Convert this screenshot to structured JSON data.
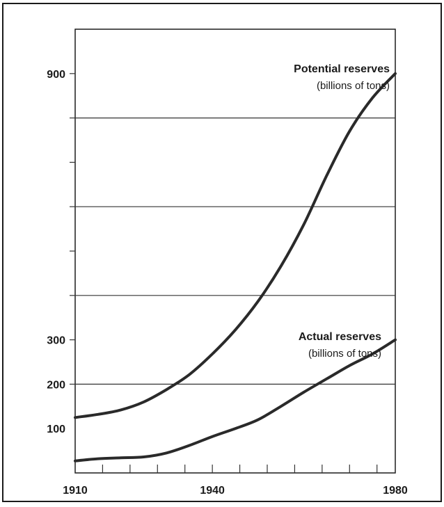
{
  "chart_data": {
    "type": "line",
    "xlim": [
      1910,
      1980
    ],
    "ylim": [
      0,
      1000
    ],
    "grid": true,
    "legend": "inline",
    "x_tick_labels": [
      {
        "value": 1910,
        "label": "1910"
      },
      {
        "value": 1940,
        "label": "1940"
      },
      {
        "value": 1980,
        "label": "1980"
      }
    ],
    "x_ticks": [
      1910,
      1916,
      1922,
      1928,
      1934,
      1940,
      1946,
      1952,
      1958,
      1964,
      1970,
      1976,
      1980
    ],
    "y_tick_labels": [
      {
        "value": 100,
        "label": "100"
      },
      {
        "value": 200,
        "label": "200"
      },
      {
        "value": 300,
        "label": "300"
      },
      {
        "value": 900,
        "label": "900"
      }
    ],
    "y_gridlines": [
      200,
      400,
      600,
      800
    ],
    "y_minor_ticks": [
      300,
      500,
      700,
      900
    ],
    "series": [
      {
        "name": "Potential reserves",
        "unit": "(billions of tons)",
        "color": "#2a2a2a",
        "x": [
          1910,
          1915,
          1920,
          1925,
          1930,
          1935,
          1940,
          1945,
          1950,
          1955,
          1960,
          1965,
          1970,
          1975,
          1980
        ],
        "values": [
          125,
          132,
          142,
          160,
          188,
          222,
          268,
          322,
          387,
          466,
          560,
          670,
          770,
          845,
          900
        ]
      },
      {
        "name": "Actual reserves",
        "unit": "(billions of tons)",
        "color": "#2a2a2a",
        "x": [
          1910,
          1915,
          1920,
          1925,
          1930,
          1935,
          1940,
          1945,
          1950,
          1955,
          1960,
          1965,
          1970,
          1975,
          1980
        ],
        "values": [
          27,
          32,
          34,
          36,
          45,
          62,
          82,
          100,
          120,
          150,
          182,
          212,
          242,
          268,
          300
        ]
      }
    ]
  }
}
